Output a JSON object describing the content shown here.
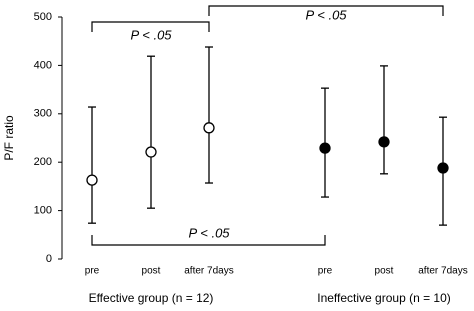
{
  "chart_data": {
    "type": "errorbar",
    "ylabel": "P/F ratio",
    "categories": [
      "pre",
      "post",
      "after 7days",
      "pre",
      "post",
      "after 7days"
    ],
    "groups": [
      "Effective group (n = 12)",
      "Ineffective group (n = 10)"
    ],
    "series": [
      {
        "color": "#000000",
        "marker": "open",
        "values": [
          163,
          221,
          271,
          null,
          null,
          null
        ],
        "upper": [
          314,
          419,
          438,
          null,
          null,
          null
        ],
        "lower": [
          74,
          105,
          157,
          null,
          null,
          null
        ]
      },
      {
        "color": "#000000",
        "marker": "filled",
        "values": [
          null,
          null,
          null,
          229,
          242,
          188
        ],
        "upper": [
          null,
          null,
          null,
          353,
          399,
          293
        ],
        "lower": [
          null,
          null,
          null,
          128,
          176,
          70
        ]
      }
    ],
    "annotations": [
      "P < .05",
      "P < .05",
      "P < .05"
    ],
    "ylim": [
      0,
      500
    ],
    "yticks": [
      0,
      100,
      200,
      300,
      400,
      500
    ]
  }
}
